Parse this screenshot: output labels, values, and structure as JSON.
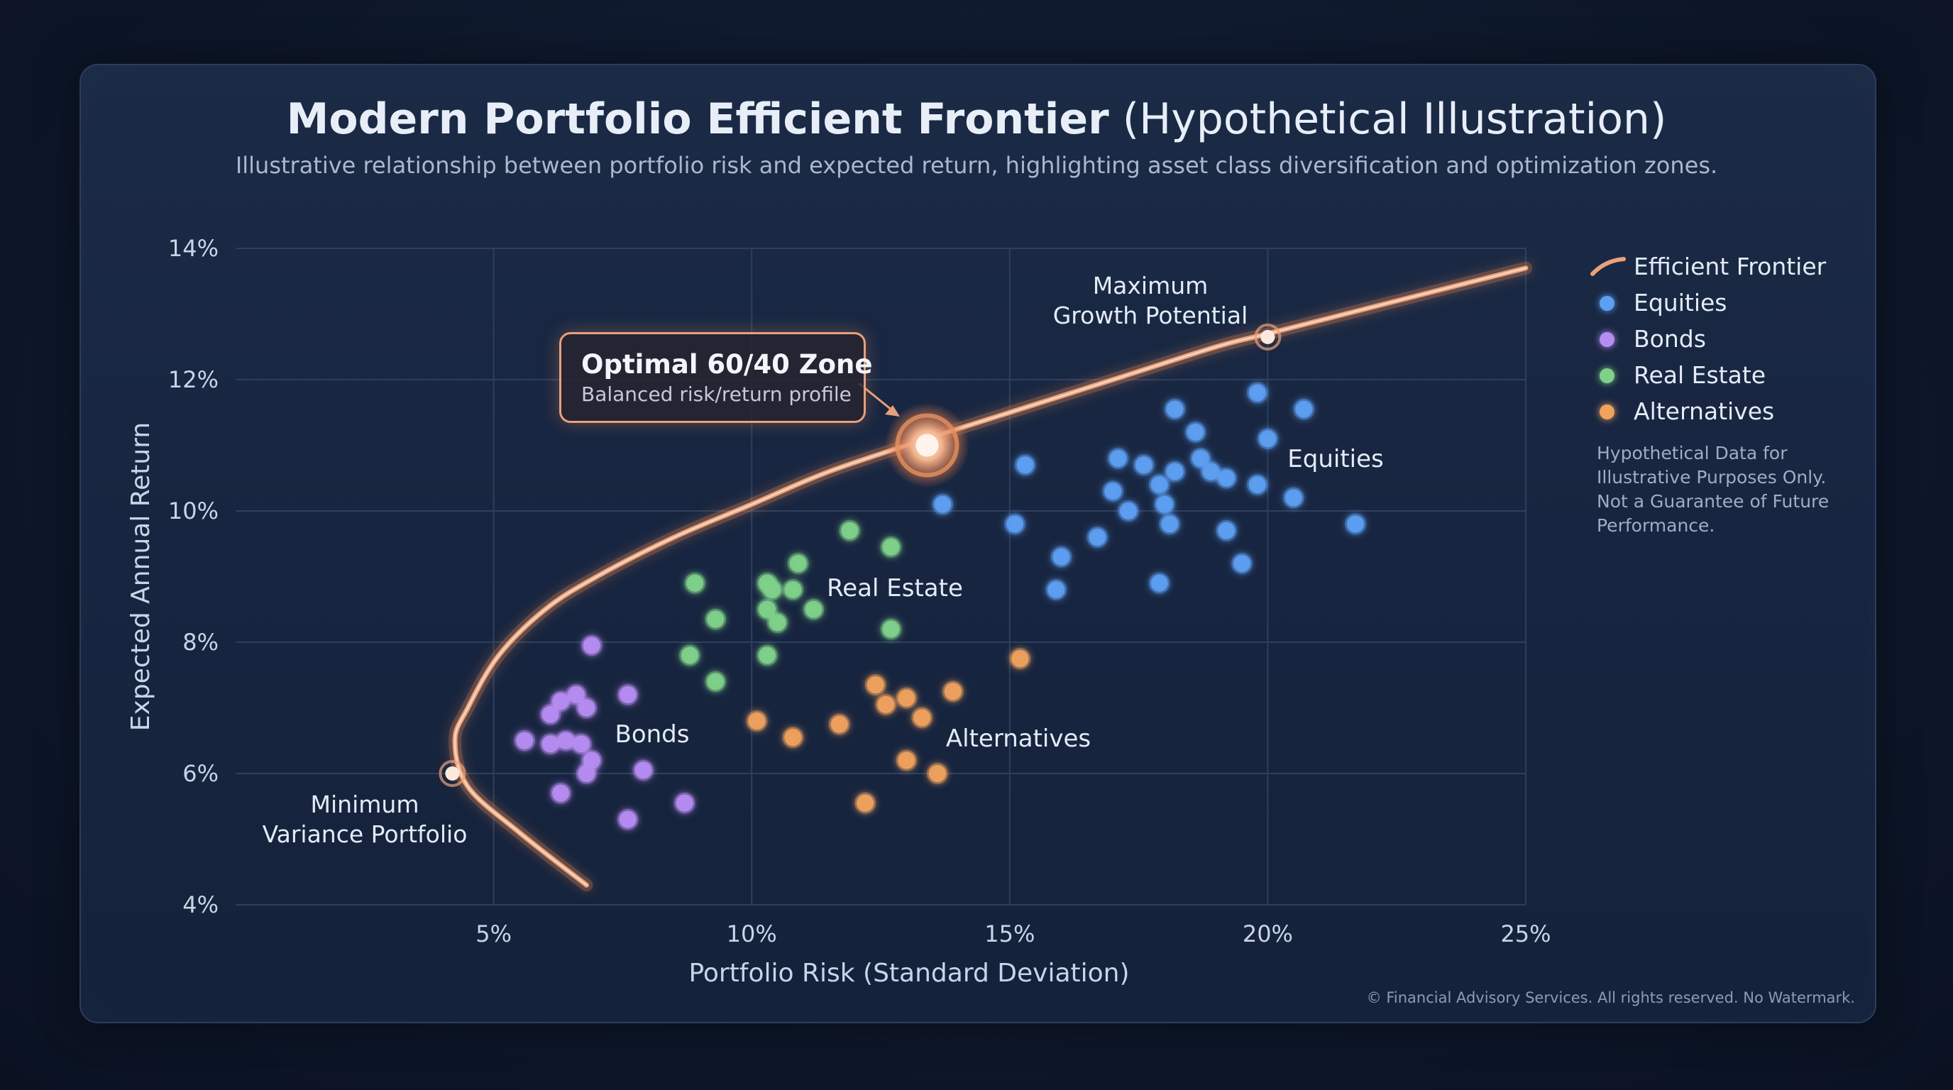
{
  "header": {
    "title_bold": "Modern Portfolio Efficient Frontier",
    "title_normal": "(Hypothetical Illustration)",
    "subtitle": "Illustrative relationship between portfolio risk and expected return, highlighting asset class diversification and optimization zones."
  },
  "legend": {
    "items": [
      {
        "label": "Efficient Frontier",
        "color": "#e9a27c",
        "kind": "line"
      },
      {
        "label": "Equities",
        "color": "#5d9ff2",
        "kind": "dot"
      },
      {
        "label": "Bonds",
        "color": "#b68cf2",
        "kind": "dot"
      },
      {
        "label": "Real Estate",
        "color": "#7fd18a",
        "kind": "dot"
      },
      {
        "label": "Alternatives",
        "color": "#f0a25e",
        "kind": "dot"
      }
    ]
  },
  "disclaimer": {
    "line1": "Hypothetical Data for",
    "line2": "Illustrative Purposes Only.",
    "line3": "Not a Guarantee of Future",
    "line4": "Performance."
  },
  "callout": {
    "title": "Optimal 60/40 Zone",
    "subtitle": "Balanced risk/return profile"
  },
  "copyright": "© Financial Advisory Services. All rights reserved. No Watermark.",
  "colors": {
    "frontier": "#e9a27c",
    "equities": "#5d9ff2",
    "bonds": "#b68cf2",
    "real_estate": "#7fd18a",
    "alternatives": "#f0a25e"
  },
  "chart_data": {
    "type": "scatter",
    "title": "Modern Portfolio Efficient Frontier (Hypothetical Illustration)",
    "xlabel": "Portfolio Risk (Standard Deviation)",
    "ylabel": "Expected Annual Return",
    "xlim": [
      0,
      25
    ],
    "ylim": [
      4,
      14
    ],
    "x_ticks": [
      5,
      10,
      15,
      20,
      25
    ],
    "x_tick_labels": [
      "5%",
      "10%",
      "15%",
      "20%",
      "25%"
    ],
    "y_ticks": [
      4,
      6,
      8,
      10,
      12,
      14
    ],
    "y_tick_labels": [
      "4%",
      "6%",
      "8%",
      "10%",
      "12%",
      "14%"
    ],
    "grid": true,
    "legend_position": "right",
    "frontier": {
      "name": "Efficient Frontier",
      "points": [
        [
          6.8,
          4.3
        ],
        [
          5.5,
          5.1
        ],
        [
          4.5,
          5.8
        ],
        [
          4.25,
          6.5
        ],
        [
          4.5,
          7.0
        ],
        [
          5.1,
          7.8
        ],
        [
          6.0,
          8.5
        ],
        [
          7.0,
          9.0
        ],
        [
          8.5,
          9.6
        ],
        [
          10.0,
          10.1
        ],
        [
          11.5,
          10.6
        ],
        [
          13.4,
          11.1
        ],
        [
          15.0,
          11.5
        ],
        [
          17.0,
          12.0
        ],
        [
          19.0,
          12.5
        ],
        [
          20.0,
          12.7
        ],
        [
          22.0,
          13.1
        ],
        [
          25.0,
          13.7
        ]
      ]
    },
    "key_points": [
      {
        "label_line1": "Minimum",
        "label_line2": "Variance Portfolio",
        "x": 4.2,
        "y": 6.0
      },
      {
        "label_line1": "Maximum",
        "label_line2": "Growth Potential",
        "x": 20.0,
        "y": 12.65
      },
      {
        "label": "Optimal 60/40 Zone",
        "x": 13.4,
        "y": 11.0
      }
    ],
    "series": [
      {
        "name": "Equities",
        "group_label": "Equities",
        "points": [
          [
            13.7,
            10.1
          ],
          [
            15.1,
            9.8
          ],
          [
            15.3,
            10.7
          ],
          [
            15.9,
            8.8
          ],
          [
            16.0,
            9.3
          ],
          [
            16.7,
            9.6
          ],
          [
            17.0,
            10.3
          ],
          [
            17.1,
            10.8
          ],
          [
            17.3,
            10.0
          ],
          [
            17.6,
            10.7
          ],
          [
            17.9,
            8.9
          ],
          [
            17.9,
            10.4
          ],
          [
            18.0,
            10.1
          ],
          [
            18.1,
            9.8
          ],
          [
            18.2,
            11.55
          ],
          [
            18.2,
            10.6
          ],
          [
            18.6,
            11.2
          ],
          [
            18.7,
            10.8
          ],
          [
            18.9,
            10.6
          ],
          [
            19.2,
            9.7
          ],
          [
            19.2,
            10.5
          ],
          [
            19.5,
            9.2
          ],
          [
            19.8,
            11.8
          ],
          [
            19.8,
            10.4
          ],
          [
            20.0,
            11.1
          ],
          [
            20.5,
            10.2
          ],
          [
            20.7,
            11.55
          ],
          [
            21.7,
            9.8
          ]
        ]
      },
      {
        "name": "Bonds",
        "group_label": "Bonds",
        "points": [
          [
            5.6,
            6.5
          ],
          [
            6.1,
            6.9
          ],
          [
            6.1,
            6.45
          ],
          [
            6.3,
            7.1
          ],
          [
            6.3,
            5.7
          ],
          [
            6.4,
            6.5
          ],
          [
            6.6,
            7.2
          ],
          [
            6.7,
            6.45
          ],
          [
            6.8,
            7.0
          ],
          [
            6.8,
            6.0
          ],
          [
            6.9,
            6.2
          ],
          [
            6.9,
            7.95
          ],
          [
            7.6,
            7.2
          ],
          [
            7.6,
            5.3
          ],
          [
            7.9,
            6.05
          ],
          [
            8.7,
            5.55
          ]
        ]
      },
      {
        "name": "Real Estate",
        "group_label": "Real Estate",
        "points": [
          [
            8.8,
            7.8
          ],
          [
            8.9,
            8.9
          ],
          [
            9.3,
            8.35
          ],
          [
            9.3,
            7.4
          ],
          [
            10.3,
            8.9
          ],
          [
            10.3,
            8.5
          ],
          [
            10.3,
            7.8
          ],
          [
            10.4,
            8.8
          ],
          [
            10.5,
            8.3
          ],
          [
            10.8,
            8.8
          ],
          [
            10.9,
            9.2
          ],
          [
            11.2,
            8.5
          ],
          [
            11.9,
            9.7
          ],
          [
            12.7,
            9.45
          ],
          [
            12.7,
            8.2
          ]
        ]
      },
      {
        "name": "Alternatives",
        "group_label": "Alternatives",
        "points": [
          [
            10.1,
            6.8
          ],
          [
            10.8,
            6.55
          ],
          [
            11.7,
            6.75
          ],
          [
            12.2,
            5.55
          ],
          [
            12.4,
            7.35
          ],
          [
            12.6,
            7.05
          ],
          [
            13.0,
            6.2
          ],
          [
            13.0,
            7.15
          ],
          [
            13.3,
            6.85
          ],
          [
            13.6,
            6.0
          ],
          [
            13.9,
            7.25
          ],
          [
            15.2,
            7.75
          ]
        ]
      }
    ]
  }
}
